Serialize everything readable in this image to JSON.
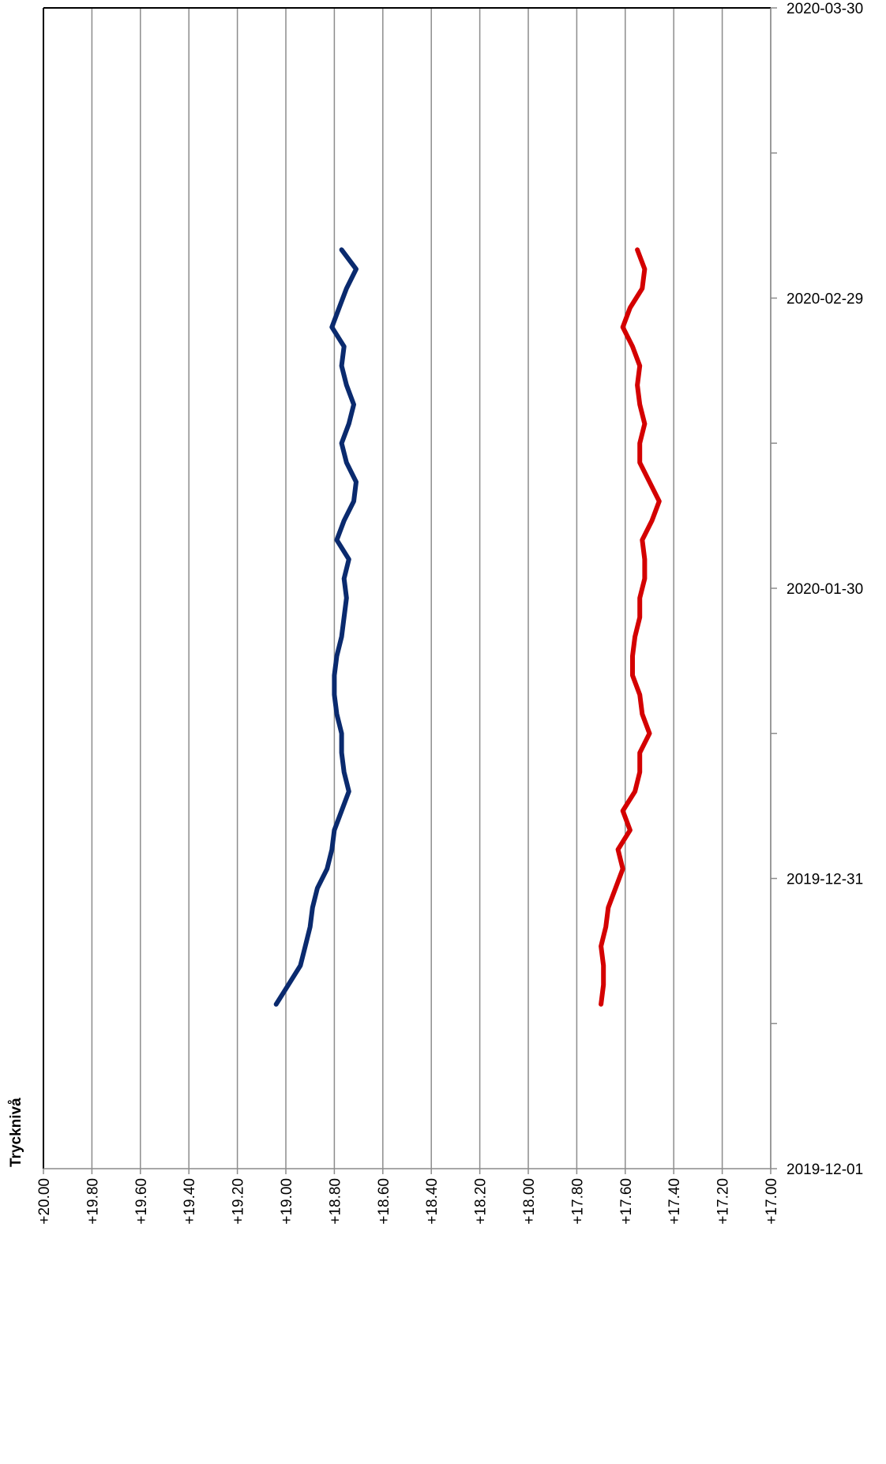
{
  "chart_data": {
    "type": "line",
    "axis_label": "Trycknivå",
    "x": [
      "2019-12-18",
      "2019-12-20",
      "2019-12-22",
      "2019-12-24",
      "2019-12-26",
      "2019-12-28",
      "2019-12-30",
      "2020-01-01",
      "2020-01-03",
      "2020-01-05",
      "2020-01-07",
      "2020-01-09",
      "2020-01-11",
      "2020-01-13",
      "2020-01-15",
      "2020-01-17",
      "2020-01-19",
      "2020-01-21",
      "2020-01-23",
      "2020-01-25",
      "2020-01-27",
      "2020-01-29",
      "2020-01-31",
      "2020-02-02",
      "2020-02-04",
      "2020-02-06",
      "2020-02-08",
      "2020-02-10",
      "2020-02-12",
      "2020-02-14",
      "2020-02-16",
      "2020-02-18",
      "2020-02-20",
      "2020-02-22",
      "2020-02-24",
      "2020-02-26",
      "2020-02-28",
      "2020-03-01",
      "2020-03-03",
      "2020-03-05"
    ],
    "series": [
      {
        "color": "#0a2a6e",
        "values": [
          19.04,
          18.99,
          18.94,
          18.92,
          18.9,
          18.89,
          18.87,
          18.83,
          18.81,
          18.8,
          18.77,
          18.74,
          18.76,
          18.77,
          18.77,
          18.79,
          18.8,
          18.8,
          18.79,
          18.77,
          18.76,
          18.75,
          18.76,
          18.74,
          18.79,
          18.76,
          18.72,
          18.71,
          18.75,
          18.77,
          18.74,
          18.72,
          18.75,
          18.77,
          18.76,
          18.81,
          18.78,
          18.75,
          18.71,
          18.77
        ]
      },
      {
        "color": "#d40000",
        "values": [
          17.7,
          17.69,
          17.69,
          17.7,
          17.68,
          17.67,
          17.64,
          17.61,
          17.63,
          17.58,
          17.61,
          17.56,
          17.54,
          17.54,
          17.5,
          17.53,
          17.54,
          17.57,
          17.57,
          17.56,
          17.54,
          17.54,
          17.52,
          17.52,
          17.53,
          17.49,
          17.46,
          17.5,
          17.54,
          17.54,
          17.52,
          17.54,
          17.55,
          17.54,
          17.57,
          17.61,
          17.58,
          17.53,
          17.52,
          17.55
        ]
      }
    ],
    "xlim": [
      "2019-12-01",
      "2020-03-30"
    ],
    "xticks": [
      "2019-12-01",
      "2019-12-31",
      "2020-01-30",
      "2020-02-29",
      "2020-03-30"
    ],
    "ylim": [
      20,
      17
    ],
    "yticks": [
      {
        "value": 20,
        "label": "+20.00"
      },
      {
        "value": 19.8,
        "label": "+19.80"
      },
      {
        "value": 19.6,
        "label": "+19.60"
      },
      {
        "value": 19.4,
        "label": "+19.40"
      },
      {
        "value": 19.2,
        "label": "+19.20"
      },
      {
        "value": 19,
        "label": "+19.00"
      },
      {
        "value": 18.8,
        "label": "+18.80"
      },
      {
        "value": 18.6,
        "label": "+18.60"
      },
      {
        "value": 18.4,
        "label": "+18.40"
      },
      {
        "value": 18.2,
        "label": "+18.20"
      },
      {
        "value": 18,
        "label": "+18.00"
      },
      {
        "value": 17.8,
        "label": "+17.80"
      },
      {
        "value": 17.6,
        "label": "+17.60"
      },
      {
        "value": 17.4,
        "label": "+17.40"
      },
      {
        "value": 17.2,
        "label": "+17.20"
      },
      {
        "value": 17,
        "label": "+17.00"
      }
    ],
    "grid": true
  }
}
